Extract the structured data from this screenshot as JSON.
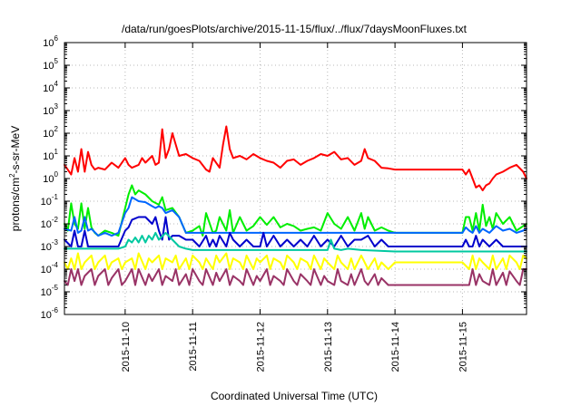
{
  "chart_data": {
    "type": "line",
    "title": "/data/run/goesPlots/archive/2015-11-15/flux/../flux/7daysMoonFluxes.txt",
    "xlabel": "Coordinated Universal Time (UTC)",
    "ylabel": "protons/cm²-s-sr-MeV",
    "ylabel_parts": {
      "base": "protons/cm",
      "sup": "2",
      "rest": "-s-sr-MeV"
    },
    "yscale": "log",
    "ylim": [
      -6,
      6
    ],
    "y_ticks": [
      {
        "base": "10",
        "exp": "-6"
      },
      {
        "base": "10",
        "exp": "-5"
      },
      {
        "base": "10",
        "exp": "-4"
      },
      {
        "base": "10",
        "exp": "-3"
      },
      {
        "base": "10",
        "exp": "-2"
      },
      {
        "base": "10",
        "exp": "-1"
      },
      {
        "base": "10",
        "exp": "0"
      },
      {
        "base": "10",
        "exp": "1"
      },
      {
        "base": "10",
        "exp": "2"
      },
      {
        "base": "10",
        "exp": "3"
      },
      {
        "base": "10",
        "exp": "4"
      },
      {
        "base": "10",
        "exp": "5"
      },
      {
        "base": "10",
        "exp": "6"
      }
    ],
    "xlim": [
      9.1,
      15.95
    ],
    "x_ticks": [
      {
        "value": 10,
        "label": "2015-11-10"
      },
      {
        "value": 11,
        "label": "2015-11-11"
      },
      {
        "value": 12,
        "label": "2015-11-12"
      },
      {
        "value": 13,
        "label": "2015-11-13"
      },
      {
        "value": 14,
        "label": "2015-11-14"
      },
      {
        "value": 15,
        "label": "2015-11-15"
      }
    ],
    "grid": true,
    "series": [
      {
        "color": "#ff0000",
        "x": [
          9.1,
          9.2,
          9.25,
          9.3,
          9.35,
          9.4,
          9.45,
          9.5,
          9.55,
          9.6,
          9.7,
          9.8,
          9.9,
          10.0,
          10.05,
          10.1,
          10.2,
          10.25,
          10.3,
          10.4,
          10.45,
          10.5,
          10.55,
          10.6,
          10.65,
          10.7,
          10.8,
          10.9,
          11.0,
          11.1,
          11.2,
          11.25,
          11.3,
          11.4,
          11.45,
          11.5,
          11.55,
          11.6,
          11.7,
          11.8,
          11.9,
          12.0,
          12.1,
          12.2,
          12.3,
          12.4,
          12.5,
          12.6,
          12.7,
          12.8,
          12.9,
          13.0,
          13.1,
          13.2,
          13.3,
          13.4,
          13.5,
          13.55,
          13.6,
          13.7,
          13.8,
          13.9,
          14.0,
          14.5,
          15.0,
          15.05,
          15.1,
          15.15,
          15.2,
          15.25,
          15.3,
          15.35,
          15.4,
          15.45,
          15.5,
          15.6,
          15.7,
          15.8,
          15.9,
          15.95
        ],
        "y": [
          4,
          1.5,
          8,
          2,
          20,
          2,
          15,
          4,
          2.5,
          3,
          2.5,
          5,
          3,
          8,
          4,
          3,
          4,
          8,
          5,
          10,
          4,
          5,
          150,
          8,
          20,
          100,
          10,
          12,
          8,
          6,
          2.5,
          2,
          8,
          3,
          30,
          200,
          20,
          8,
          10,
          7,
          12,
          8,
          6,
          5,
          3,
          6,
          7,
          4,
          6,
          8,
          12,
          10,
          15,
          7,
          8,
          4,
          6,
          20,
          8,
          6,
          3,
          2.8,
          2.5,
          2.5,
          2.5,
          1.5,
          2.5,
          1,
          0.4,
          0.5,
          0.3,
          0.5,
          0.6,
          1,
          1.5,
          2,
          3,
          4,
          2,
          1
        ]
      },
      {
        "color": "#00ee00",
        "x": [
          9.1,
          9.15,
          9.2,
          9.25,
          9.3,
          9.35,
          9.4,
          9.45,
          9.5,
          9.55,
          9.6,
          9.7,
          9.8,
          9.9,
          10.0,
          10.05,
          10.1,
          10.15,
          10.2,
          10.3,
          10.4,
          10.5,
          10.55,
          10.6,
          10.7,
          10.8,
          10.9,
          11.0,
          11.1,
          11.15,
          11.2,
          11.3,
          11.35,
          11.4,
          11.5,
          11.55,
          11.6,
          11.7,
          11.8,
          11.9,
          12.0,
          12.1,
          12.2,
          12.3,
          12.4,
          12.5,
          12.6,
          12.7,
          12.8,
          12.9,
          13.0,
          13.1,
          13.2,
          13.3,
          13.4,
          13.5,
          13.55,
          13.6,
          13.7,
          13.8,
          13.9,
          14.0,
          14.5,
          15.0,
          15.05,
          15.1,
          15.15,
          15.2,
          15.25,
          15.3,
          15.35,
          15.4,
          15.45,
          15.5,
          15.6,
          15.7,
          15.8,
          15.9,
          15.95
        ],
        "y": [
          0.01,
          0.005,
          0.08,
          0.01,
          0.006,
          0.08,
          0.006,
          0.05,
          0.007,
          0.004,
          0.003,
          0.005,
          0.004,
          0.003,
          0.05,
          0.2,
          0.5,
          0.2,
          0.3,
          0.2,
          0.1,
          0.07,
          0.15,
          0.04,
          0.05,
          0.02,
          0.004,
          0.005,
          0.008,
          0.003,
          0.03,
          0.004,
          0.005,
          0.02,
          0.005,
          0.04,
          0.004,
          0.02,
          0.005,
          0.008,
          0.02,
          0.009,
          0.02,
          0.007,
          0.01,
          0.008,
          0.005,
          0.006,
          0.007,
          0.005,
          0.03,
          0.01,
          0.006,
          0.02,
          0.005,
          0.03,
          0.006,
          0.02,
          0.005,
          0.007,
          0.005,
          0.004,
          0.004,
          0.004,
          0.02,
          0.02,
          0.005,
          0.03,
          0.005,
          0.07,
          0.008,
          0.02,
          0.006,
          0.03,
          0.01,
          0.02,
          0.005,
          0.008,
          0.01
        ]
      },
      {
        "color": "#0066ff",
        "x": [
          9.1,
          9.2,
          9.25,
          9.3,
          9.35,
          9.4,
          9.45,
          9.5,
          9.6,
          9.7,
          9.8,
          9.9,
          10.0,
          10.05,
          10.1,
          10.2,
          10.3,
          10.4,
          10.45,
          10.5,
          10.55,
          10.6,
          10.7,
          10.8,
          10.9,
          11.0,
          11.5,
          12.0,
          12.5,
          13.0,
          13.5,
          14.0,
          14.5,
          15.0,
          15.05,
          15.1,
          15.15,
          15.2,
          15.25,
          15.3,
          15.4,
          15.5,
          15.6,
          15.7,
          15.8,
          15.9,
          15.95
        ],
        "y": [
          0.006,
          0.005,
          0.02,
          0.004,
          0.005,
          0.02,
          0.005,
          0.006,
          0.003,
          0.004,
          0.003,
          0.004,
          0.03,
          0.05,
          0.15,
          0.1,
          0.09,
          0.06,
          0.05,
          0.06,
          0.05,
          0.03,
          0.04,
          0.02,
          0.004,
          0.004,
          0.004,
          0.004,
          0.004,
          0.004,
          0.004,
          0.004,
          0.004,
          0.004,
          0.007,
          0.005,
          0.004,
          0.008,
          0.004,
          0.006,
          0.004,
          0.008,
          0.005,
          0.006,
          0.004,
          0.005,
          0.006
        ]
      },
      {
        "color": "#0000cc",
        "x": [
          9.1,
          9.2,
          9.25,
          9.3,
          9.35,
          9.4,
          9.45,
          9.5,
          9.6,
          9.7,
          9.8,
          9.9,
          10.0,
          10.05,
          10.1,
          10.2,
          10.3,
          10.4,
          10.45,
          10.5,
          10.55,
          10.6,
          10.65,
          10.7,
          10.8,
          10.9,
          11.0,
          11.1,
          11.2,
          11.25,
          11.3,
          11.35,
          11.4,
          11.5,
          11.55,
          11.6,
          11.7,
          11.8,
          11.9,
          12.0,
          12.05,
          12.1,
          12.2,
          12.3,
          12.4,
          12.5,
          12.6,
          12.7,
          12.8,
          12.9,
          13.0,
          13.1,
          13.2,
          13.3,
          13.4,
          13.5,
          13.6,
          13.7,
          13.8,
          13.9,
          14.0,
          14.5,
          15.0,
          15.05,
          15.1,
          15.15,
          15.2,
          15.25,
          15.3,
          15.4,
          15.5,
          15.6,
          15.7,
          15.8,
          15.9,
          15.95
        ],
        "y": [
          0.002,
          0.001,
          0.005,
          0.001,
          0.001,
          0.005,
          0.001,
          0.001,
          0.001,
          0.001,
          0.001,
          0.001,
          0.005,
          0.007,
          0.015,
          0.02,
          0.02,
          0.01,
          0.02,
          0.005,
          0.002,
          0.02,
          0.002,
          0.003,
          0.003,
          0.002,
          0.002,
          0.001,
          0.003,
          0.001,
          0.002,
          0.001,
          0.003,
          0.001,
          0.004,
          0.002,
          0.001,
          0.002,
          0.001,
          0.001,
          0.004,
          0.001,
          0.003,
          0.001,
          0.002,
          0.001,
          0.002,
          0.001,
          0.003,
          0.001,
          0.002,
          0.001,
          0.003,
          0.001,
          0.002,
          0.002,
          0.003,
          0.001,
          0.002,
          0.001,
          0.001,
          0.001,
          0.001,
          0.002,
          0.001,
          0.001,
          0.003,
          0.001,
          0.002,
          0.001,
          0.002,
          0.001,
          0.001,
          0.001,
          0.001,
          0.001
        ]
      },
      {
        "color": "#00c8a0",
        "x": [
          9.1,
          9.2,
          9.3,
          9.4,
          9.5,
          9.6,
          9.7,
          9.8,
          9.9,
          10.0,
          10.05,
          10.1,
          10.15,
          10.2,
          10.25,
          10.3,
          10.35,
          10.4,
          10.45,
          10.5,
          10.6,
          10.7,
          10.8,
          10.9,
          11.0,
          11.5,
          12.0,
          12.5,
          13.0,
          13.05,
          13.1,
          13.2,
          13.3,
          13.5,
          14.0,
          14.5,
          15.0,
          15.05,
          15.1,
          15.2,
          15.3,
          15.4,
          15.5,
          15.6,
          15.7,
          15.8,
          15.9,
          15.95
        ],
        "y": [
          0.0008,
          0.0008,
          0.0008,
          0.0008,
          0.0008,
          0.0008,
          0.0008,
          0.0008,
          0.0008,
          0.001,
          0.002,
          0.0015,
          0.0025,
          0.0015,
          0.003,
          0.0015,
          0.003,
          0.002,
          0.004,
          0.002,
          0.004,
          0.002,
          0.001,
          0.0008,
          0.0007,
          0.0007,
          0.0007,
          0.0007,
          0.0007,
          0.002,
          0.0008,
          0.0007,
          0.0008,
          0.0007,
          0.0006,
          0.0006,
          0.0006,
          0.0006,
          0.0006,
          0.0006,
          0.0006,
          0.0006,
          0.0006,
          0.0006,
          0.0006,
          0.0006,
          0.0006,
          0.0006
        ]
      },
      {
        "color": "#ffff00",
        "x": [
          9.1,
          9.15,
          9.2,
          9.25,
          9.3,
          9.35,
          9.4,
          9.5,
          9.55,
          9.6,
          9.7,
          9.75,
          9.8,
          9.9,
          9.95,
          10.0,
          10.1,
          10.15,
          10.2,
          10.3,
          10.35,
          10.4,
          10.5,
          10.55,
          10.6,
          10.7,
          10.75,
          10.8,
          10.9,
          10.95,
          11.0,
          11.1,
          11.15,
          11.2,
          11.3,
          11.35,
          11.4,
          11.5,
          11.55,
          11.6,
          11.7,
          11.75,
          11.8,
          11.9,
          11.95,
          12.0,
          12.1,
          12.15,
          12.2,
          12.3,
          12.35,
          12.4,
          12.5,
          12.55,
          12.6,
          12.7,
          12.75,
          12.8,
          12.9,
          12.95,
          13.0,
          13.1,
          13.15,
          13.2,
          13.3,
          13.35,
          13.4,
          13.5,
          13.55,
          13.6,
          13.7,
          13.75,
          13.8,
          13.9,
          14.0,
          14.5,
          15.0,
          15.1,
          15.15,
          15.2,
          15.25,
          15.3,
          15.4,
          15.45,
          15.5,
          15.6,
          15.65,
          15.7,
          15.8,
          15.85,
          15.9,
          15.95
        ],
        "y": [
          0.0002,
          0.0001,
          0.0003,
          0.0001,
          0.0005,
          0.0001,
          0.0002,
          0.0004,
          0.0001,
          0.0002,
          0.0004,
          0.0001,
          0.0002,
          0.0003,
          0.0001,
          0.0002,
          0.0003,
          0.0001,
          0.0005,
          0.0001,
          0.0003,
          0.0002,
          0.0004,
          0.0001,
          0.0003,
          0.0002,
          0.0004,
          0.0001,
          0.0003,
          0.0001,
          0.0004,
          0.0002,
          0.0001,
          0.0003,
          0.0001,
          0.0004,
          0.0002,
          0.0005,
          0.0001,
          0.0003,
          0.0002,
          0.0001,
          0.0004,
          0.0001,
          0.0003,
          0.0002,
          0.0004,
          0.0001,
          0.0003,
          0.0002,
          0.0001,
          0.0004,
          0.0002,
          0.0001,
          0.0003,
          0.0002,
          0.0001,
          0.0004,
          0.0001,
          0.0003,
          0.0002,
          0.0001,
          0.0004,
          0.0002,
          0.0001,
          0.0003,
          0.0001,
          0.0004,
          0.0002,
          0.0001,
          0.0003,
          0.0001,
          0.0002,
          0.0001,
          0.0002,
          0.0002,
          0.0002,
          0.0001,
          0.0004,
          0.0001,
          0.0003,
          0.0002,
          0.0001,
          0.0004,
          0.0001,
          0.0003,
          0.0001,
          0.0004,
          0.0002,
          0.0001,
          0.0004,
          0.0003
        ]
      },
      {
        "color": "#993366",
        "x": [
          9.1,
          9.15,
          9.2,
          9.25,
          9.3,
          9.35,
          9.4,
          9.5,
          9.55,
          9.6,
          9.7,
          9.75,
          9.8,
          9.9,
          9.95,
          10.0,
          10.1,
          10.15,
          10.2,
          10.3,
          10.35,
          10.4,
          10.5,
          10.55,
          10.6,
          10.7,
          10.75,
          10.8,
          10.9,
          10.95,
          11.0,
          11.1,
          11.15,
          11.2,
          11.3,
          11.35,
          11.4,
          11.5,
          11.55,
          11.6,
          11.7,
          11.75,
          11.8,
          11.9,
          11.95,
          12.0,
          12.1,
          12.15,
          12.2,
          12.3,
          12.35,
          12.4,
          12.5,
          12.55,
          12.6,
          12.7,
          12.75,
          12.8,
          12.9,
          12.95,
          13.0,
          13.1,
          13.15,
          13.2,
          13.3,
          13.35,
          13.4,
          13.5,
          13.55,
          13.6,
          13.7,
          13.75,
          13.8,
          13.9,
          14.0,
          14.5,
          15.0,
          15.1,
          15.15,
          15.2,
          15.25,
          15.3,
          15.4,
          15.45,
          15.5,
          15.6,
          15.65,
          15.7,
          15.8,
          15.85,
          15.9,
          15.95
        ],
        "y": [
          3e-05,
          2e-05,
          0.0001,
          3e-05,
          0.0001,
          2e-05,
          5e-05,
          0.0001,
          2e-05,
          5e-05,
          0.0001,
          2e-05,
          4e-05,
          0.0001,
          2e-05,
          3e-05,
          0.0001,
          2e-05,
          0.0001,
          2e-05,
          6e-05,
          3e-05,
          0.0001,
          2e-05,
          5e-05,
          3e-05,
          0.0001,
          2e-05,
          6e-05,
          2e-05,
          0.0001,
          3e-05,
          2e-05,
          0.0001,
          2e-05,
          7e-05,
          3e-05,
          0.0001,
          2e-05,
          5e-05,
          3e-05,
          2e-05,
          0.0001,
          2e-05,
          5e-05,
          3e-05,
          0.0001,
          2e-05,
          5e-05,
          3e-05,
          2e-05,
          0.0001,
          3e-05,
          2e-05,
          6e-05,
          3e-05,
          2e-05,
          0.0001,
          2e-05,
          5e-05,
          3e-05,
          2e-05,
          0.0001,
          3e-05,
          2e-05,
          6e-05,
          2e-05,
          0.0001,
          3e-05,
          2e-05,
          6e-05,
          2e-05,
          4e-05,
          2e-05,
          2e-05,
          2e-05,
          2e-05,
          2e-05,
          0.0001,
          2e-05,
          6e-05,
          3e-05,
          2e-05,
          0.0001,
          2e-05,
          7e-05,
          2e-05,
          8e-05,
          3e-05,
          2e-05,
          0.0001,
          0.0001
        ]
      }
    ]
  }
}
